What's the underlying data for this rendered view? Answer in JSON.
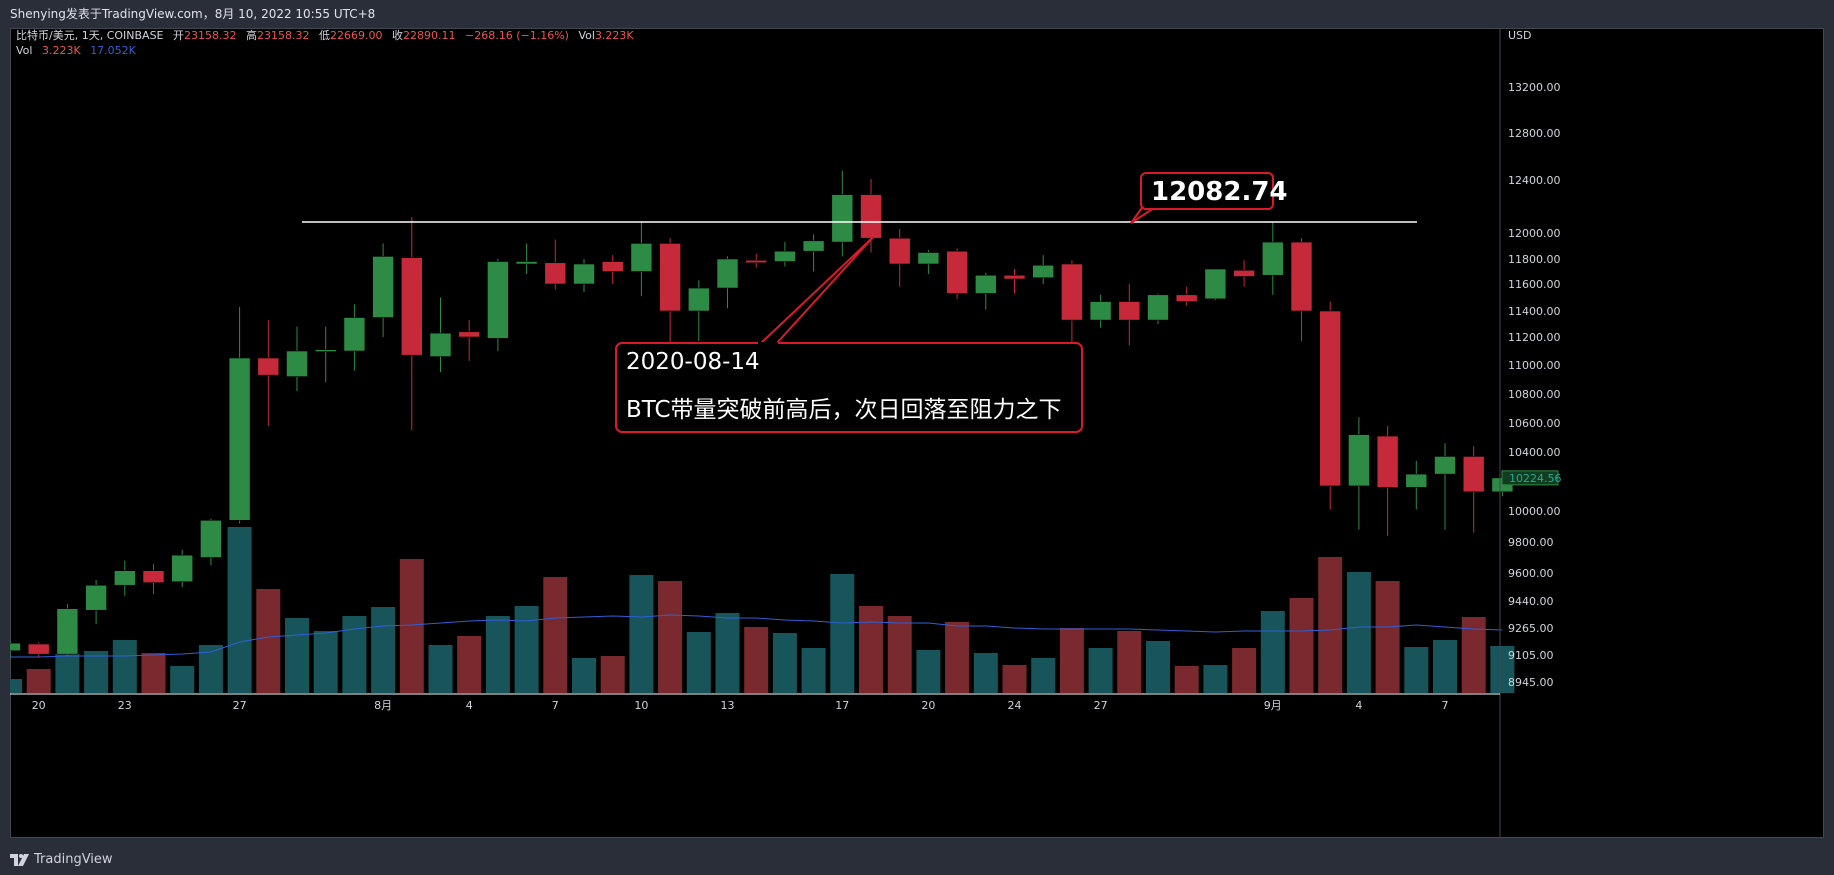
{
  "header": {
    "title": "Shenying发表于TradingView.com，8月 10, 2022 10:55 UTC+8"
  },
  "legend": {
    "symbol": "比特币/美元, 1天, COINBASE",
    "open_label": "开",
    "open": "23158.32",
    "high_label": "高",
    "high": "23158.32",
    "low_label": "低",
    "low": "22669.00",
    "close_label": "收",
    "close": "22890.11",
    "change": "−268.16 (−1.16%)",
    "vol_label": "Vol",
    "vol": "3.223K",
    "vol_row_label": "Vol",
    "vol_row_value": "3.223K",
    "vol_row_ma": "17.052K"
  },
  "annotation": {
    "date": "2020-08-14",
    "text": "BTC带量突破前高后，次日回落至阻力之下",
    "resistance_value": "12082.74"
  },
  "price_axis": {
    "currency": "USD",
    "current_price": "10224.56"
  },
  "footer": {
    "brand": "TradingView"
  },
  "colors": {
    "up": "#2e8b45",
    "down": "#c62a3a",
    "up_vol": "#17555a",
    "down_vol": "#7a2a2e",
    "ma": "#2f5fd6",
    "annotation": "#d91a2a",
    "bg": "#000000",
    "text": "#d1d4dc"
  },
  "chart_data": {
    "type": "candlestick",
    "price_ticks": [
      13200,
      12800,
      12400,
      12000,
      11800,
      11600,
      11400,
      11200,
      11000,
      10800,
      10600,
      10400,
      10000,
      9800,
      9600,
      9440,
      9265,
      9105,
      8945
    ],
    "price_tick_labels": [
      "13200.00",
      "12800.00",
      "12400.00",
      "12000.00",
      "11800.00",
      "11600.00",
      "11400.00",
      "11200.00",
      "11000.00",
      "10800.00",
      "10600.00",
      "10400.00",
      "10000.00",
      "9800.00",
      "9600.00",
      "9440.00",
      "9265.00",
      "9105.00",
      "8945.00"
    ],
    "x_labels": [
      {
        "index": 1,
        "label": "20"
      },
      {
        "index": 4,
        "label": "23"
      },
      {
        "index": 8,
        "label": "27"
      },
      {
        "index": 13,
        "label": "8月"
      },
      {
        "index": 16,
        "label": "4"
      },
      {
        "index": 19,
        "label": "7"
      },
      {
        "index": 22,
        "label": "10"
      },
      {
        "index": 25,
        "label": "13"
      },
      {
        "index": 29,
        "label": "17"
      },
      {
        "index": 32,
        "label": "20"
      },
      {
        "index": 35,
        "label": "24"
      },
      {
        "index": 38,
        "label": "27"
      },
      {
        "index": 44,
        "label": "9月"
      },
      {
        "index": 47,
        "label": "4"
      },
      {
        "index": 50,
        "label": "7"
      }
    ],
    "candles": [
      {
        "o": 9130,
        "h": 9190,
        "l": 9080,
        "c": 9175
      },
      {
        "o": 9170,
        "h": 9180,
        "l": 9090,
        "c": 9110
      },
      {
        "o": 9110,
        "h": 9420,
        "l": 9100,
        "c": 9390
      },
      {
        "o": 9380,
        "h": 9560,
        "l": 9290,
        "c": 9530
      },
      {
        "o": 9530,
        "h": 9680,
        "l": 9470,
        "c": 9615
      },
      {
        "o": 9615,
        "h": 9660,
        "l": 9480,
        "c": 9545
      },
      {
        "o": 9550,
        "h": 9750,
        "l": 9520,
        "c": 9715
      },
      {
        "o": 9700,
        "h": 9950,
        "l": 9650,
        "c": 9940
      },
      {
        "o": 9940,
        "h": 11430,
        "l": 9920,
        "c": 11050
      },
      {
        "o": 11050,
        "h": 11330,
        "l": 10580,
        "c": 10930
      },
      {
        "o": 10920,
        "h": 11280,
        "l": 10820,
        "c": 11100
      },
      {
        "o": 11100,
        "h": 11280,
        "l": 10880,
        "c": 11110
      },
      {
        "o": 11100,
        "h": 11450,
        "l": 10960,
        "c": 11350
      },
      {
        "o": 11350,
        "h": 11920,
        "l": 11200,
        "c": 11820
      },
      {
        "o": 11810,
        "h": 12120,
        "l": 10550,
        "c": 11070
      },
      {
        "o": 11060,
        "h": 11500,
        "l": 10950,
        "c": 11230
      },
      {
        "o": 11240,
        "h": 11330,
        "l": 11030,
        "c": 11200
      },
      {
        "o": 11190,
        "h": 11800,
        "l": 11100,
        "c": 11780
      },
      {
        "o": 11760,
        "h": 11920,
        "l": 11680,
        "c": 11780
      },
      {
        "o": 11770,
        "h": 11950,
        "l": 11560,
        "c": 11600
      },
      {
        "o": 11600,
        "h": 11800,
        "l": 11540,
        "c": 11760
      },
      {
        "o": 11780,
        "h": 11830,
        "l": 11600,
        "c": 11700
      },
      {
        "o": 11700,
        "h": 12080,
        "l": 11510,
        "c": 11920
      },
      {
        "o": 11920,
        "h": 11960,
        "l": 11120,
        "c": 11400
      },
      {
        "o": 11400,
        "h": 11630,
        "l": 11170,
        "c": 11570
      },
      {
        "o": 11570,
        "h": 11820,
        "l": 11420,
        "c": 11800
      },
      {
        "o": 11790,
        "h": 11840,
        "l": 11730,
        "c": 11770
      },
      {
        "o": 11780,
        "h": 11930,
        "l": 11740,
        "c": 11860
      },
      {
        "o": 11860,
        "h": 11990,
        "l": 11700,
        "c": 11940
      },
      {
        "o": 11930,
        "h": 12480,
        "l": 11820,
        "c": 12290
      },
      {
        "o": 12290,
        "h": 12410,
        "l": 11850,
        "c": 11960
      },
      {
        "o": 11960,
        "h": 12030,
        "l": 11580,
        "c": 11760
      },
      {
        "o": 11760,
        "h": 11870,
        "l": 11680,
        "c": 11850
      },
      {
        "o": 11860,
        "h": 11880,
        "l": 11490,
        "c": 11530
      },
      {
        "o": 11530,
        "h": 11690,
        "l": 11410,
        "c": 11670
      },
      {
        "o": 11670,
        "h": 11720,
        "l": 11530,
        "c": 11640
      },
      {
        "o": 11650,
        "h": 11830,
        "l": 11600,
        "c": 11750
      },
      {
        "o": 11760,
        "h": 11790,
        "l": 11130,
        "c": 11330
      },
      {
        "o": 11330,
        "h": 11520,
        "l": 11270,
        "c": 11470
      },
      {
        "o": 11470,
        "h": 11600,
        "l": 11140,
        "c": 11330
      },
      {
        "o": 11330,
        "h": 11530,
        "l": 11300,
        "c": 11520
      },
      {
        "o": 11520,
        "h": 11580,
        "l": 11440,
        "c": 11470
      },
      {
        "o": 11490,
        "h": 11720,
        "l": 11480,
        "c": 11720
      },
      {
        "o": 11710,
        "h": 11790,
        "l": 11580,
        "c": 11660
      },
      {
        "o": 11670,
        "h": 12080,
        "l": 11520,
        "c": 11930
      },
      {
        "o": 11930,
        "h": 11960,
        "l": 11170,
        "c": 11400
      },
      {
        "o": 11400,
        "h": 11470,
        "l": 10010,
        "c": 10170
      },
      {
        "o": 10170,
        "h": 10640,
        "l": 9880,
        "c": 10520
      },
      {
        "o": 10510,
        "h": 10580,
        "l": 9840,
        "c": 10160
      },
      {
        "o": 10160,
        "h": 10340,
        "l": 10010,
        "c": 10250
      },
      {
        "o": 10250,
        "h": 10460,
        "l": 9880,
        "c": 10370
      },
      {
        "o": 10370,
        "h": 10440,
        "l": 9860,
        "c": 10130
      },
      {
        "o": 10130,
        "h": 10260,
        "l": 10100,
        "c": 10224.56
      }
    ],
    "volumes": [
      14,
      24,
      39,
      42,
      53,
      40,
      27,
      48,
      166,
      104,
      75,
      62,
      77,
      86,
      134,
      48,
      57,
      77,
      87,
      116,
      35,
      37,
      118,
      112,
      61,
      80,
      66,
      60,
      45,
      119,
      87,
      77,
      43,
      71,
      40,
      28,
      35,
      65,
      45,
      62,
      52,
      27,
      28,
      45,
      82,
      95,
      136,
      121,
      112,
      46,
      53,
      76,
      47
    ],
    "volume_ma": [
      36,
      36,
      37,
      37,
      37,
      38,
      39,
      41,
      51,
      56,
      58,
      60,
      64,
      67,
      68,
      70,
      72,
      73,
      72,
      75,
      76,
      77,
      76,
      78,
      77,
      75,
      75,
      73,
      72,
      70,
      71,
      70,
      70,
      67,
      67,
      65,
      64,
      64,
      64,
      64,
      63,
      62,
      61,
      62,
      62,
      62,
      63,
      66,
      66,
      68,
      66,
      64,
      63
    ],
    "resistance": 12082.74
  }
}
